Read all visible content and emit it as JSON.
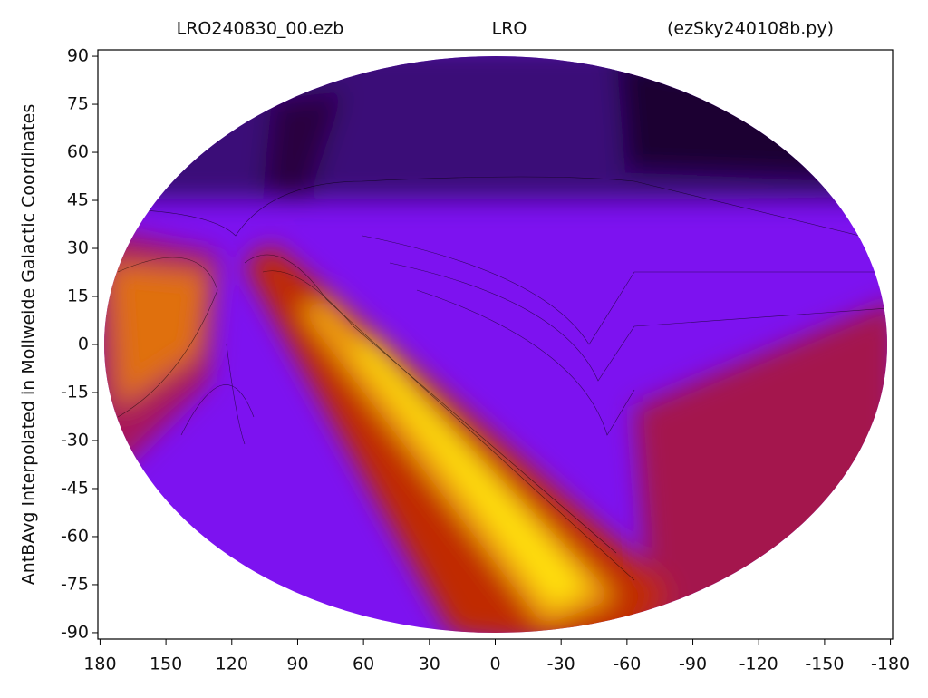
{
  "chart_data": {
    "type": "contour",
    "title_parts": [
      "LRO240830_00.ezb",
      "LRO",
      "(ezSky240108b.py)"
    ],
    "ylabel": "AntBAvg Interpolated in Mollweide Galactic Coordinates",
    "xlim": [
      181,
      -181
    ],
    "ylim": [
      -92,
      92
    ],
    "xticks": [
      180,
      150,
      120,
      90,
      60,
      30,
      0,
      -30,
      -60,
      -90,
      -120,
      -150,
      -180
    ],
    "yticks": [
      90,
      75,
      60,
      45,
      30,
      15,
      0,
      -15,
      -30,
      -45,
      -60,
      -75,
      -90
    ]
  }
}
